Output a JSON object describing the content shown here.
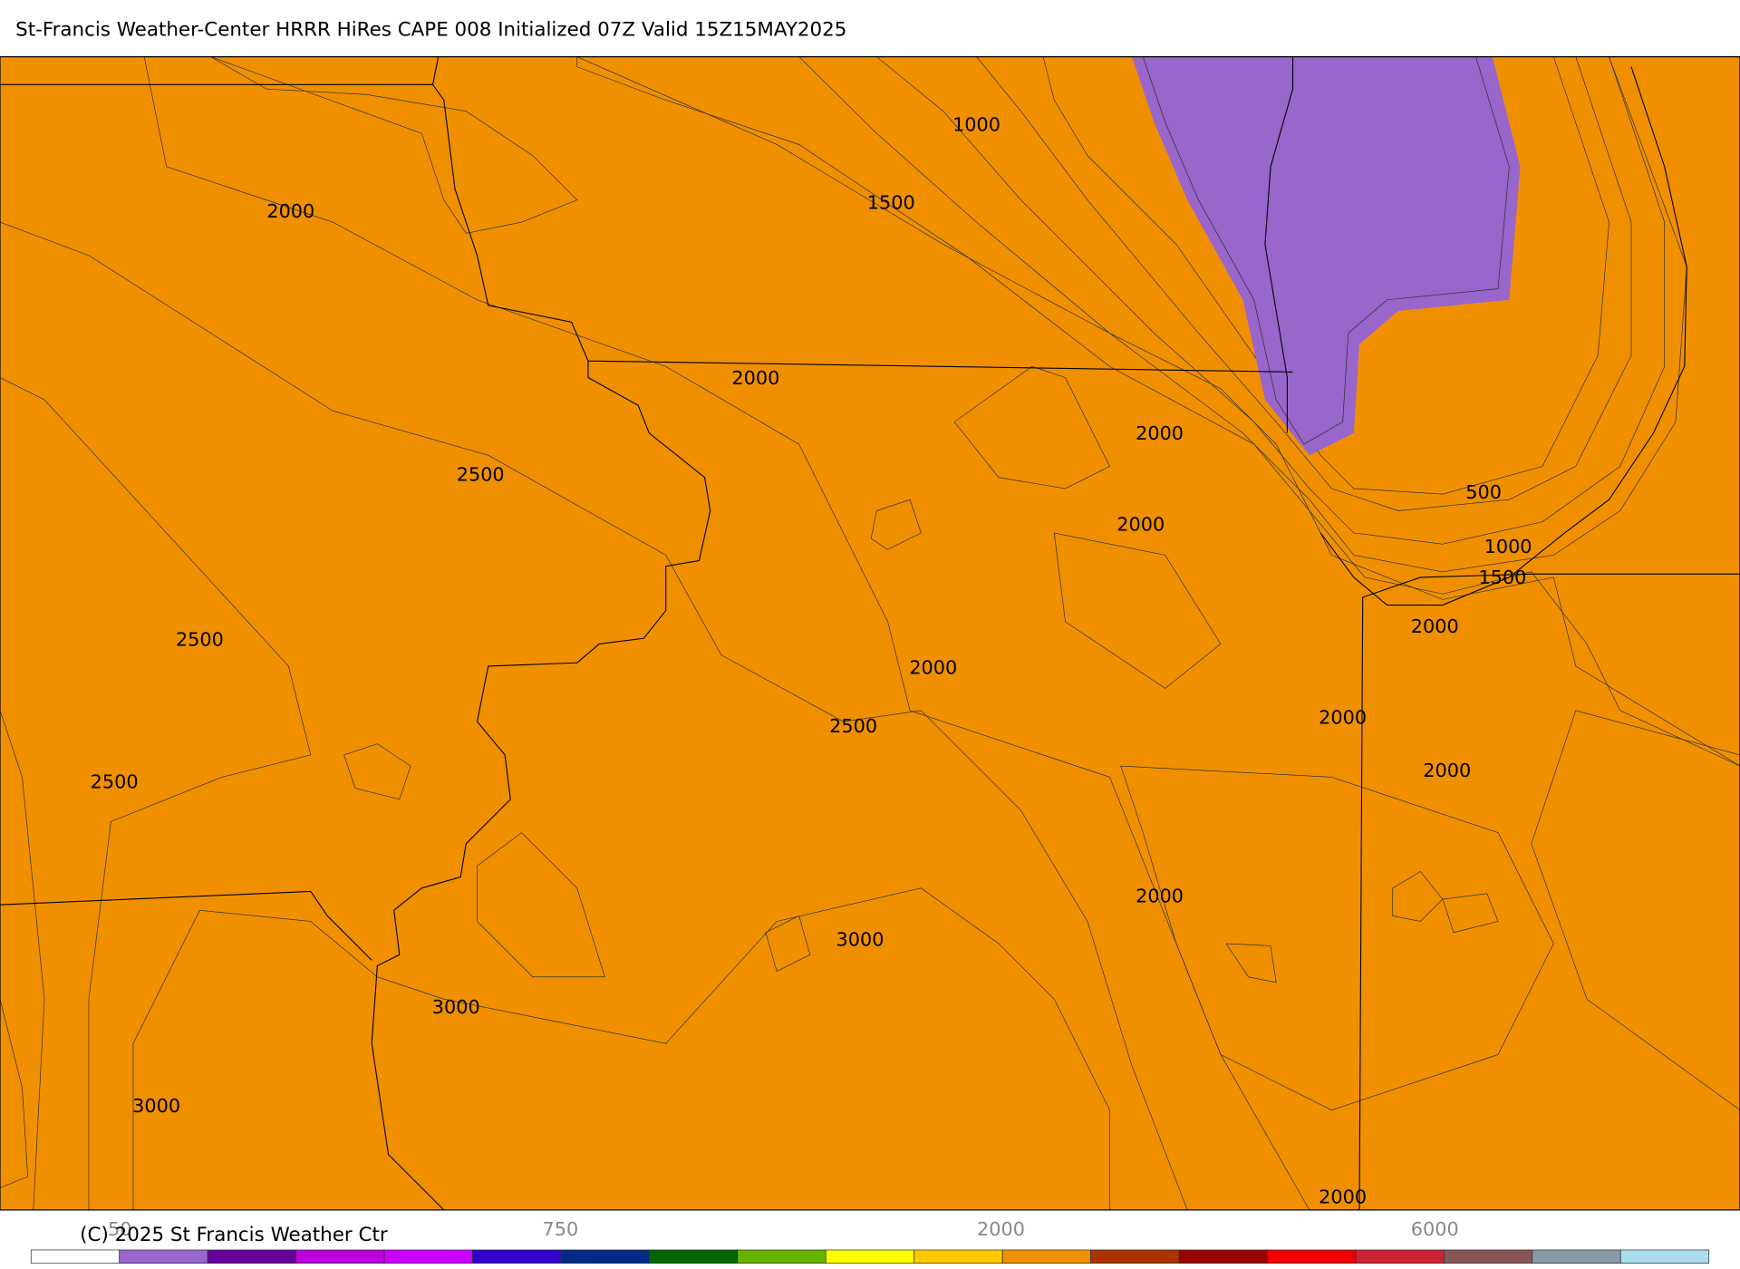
{
  "title": "St-Francis Weather-Center HRRR HiRes CAPE  008 Initialized  07Z Valid 15Z15MAY2025",
  "contour_labels": [
    1000,
    1500,
    2000,
    2000,
    2000,
    2500,
    500,
    2000,
    1000,
    1500,
    2000,
    2500,
    2000,
    2000,
    2500,
    2000,
    2500,
    2000,
    3000,
    3000,
    3000,
    2000
  ],
  "colorbar": {
    "colors": [
      "#ffffff",
      "#9966cc",
      "#660099",
      "#bb00dd",
      "#cc00ff",
      "#3300cc",
      "#002a88",
      "#006600",
      "#66b300",
      "#ffff00",
      "#ffc800",
      "#f09000",
      "#aa3300",
      "#990000",
      "#ee0000",
      "#cc2233",
      "#885555",
      "#8899aa",
      "#aaddee"
    ],
    "labels": [
      "50",
      "750",
      "2000",
      "6000"
    ]
  },
  "copyright": "(C) 2025 St Francis Weather Ctr"
}
